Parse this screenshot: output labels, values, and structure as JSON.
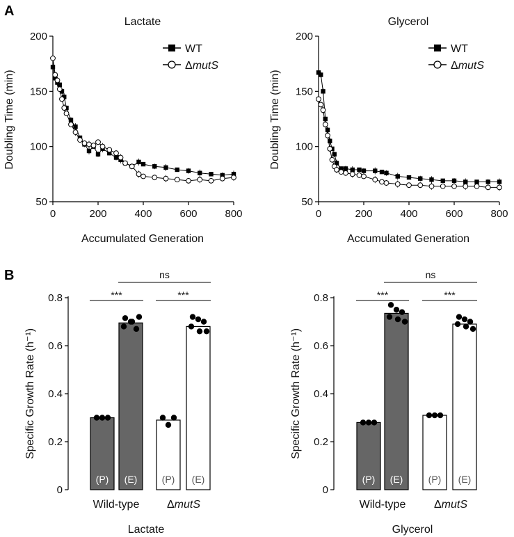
{
  "panels": {
    "A": "A",
    "B": "B"
  },
  "chart_data": [
    {
      "id": "A-lactate",
      "type": "line",
      "title": "Lactate",
      "xlabel": "Accumulated Generation",
      "ylabel": "Doubling Time (min)",
      "xlim": [
        0,
        800
      ],
      "ylim": [
        50,
        200
      ],
      "xticks": [
        0,
        200,
        400,
        600,
        800
      ],
      "yticks": [
        50,
        100,
        150,
        200
      ],
      "legend": "top-right",
      "series": [
        {
          "name": "WT",
          "marker": "filled-square",
          "x": [
            0,
            10,
            20,
            30,
            40,
            50,
            60,
            80,
            100,
            120,
            140,
            160,
            180,
            200,
            220,
            250,
            280,
            300,
            320,
            350,
            380,
            400,
            450,
            500,
            550,
            600,
            650,
            700,
            750,
            800
          ],
          "y": [
            172,
            162,
            158,
            156,
            150,
            145,
            135,
            124,
            118,
            108,
            102,
            96,
            100,
            93,
            98,
            94,
            90,
            88,
            85,
            82,
            86,
            84,
            82,
            81,
            79,
            78,
            76,
            75,
            74,
            75
          ]
        },
        {
          "name": "ΔmutS",
          "marker": "open-circle",
          "x": [
            0,
            10,
            20,
            30,
            40,
            50,
            60,
            80,
            100,
            120,
            140,
            160,
            180,
            200,
            220,
            250,
            280,
            300,
            320,
            350,
            380,
            400,
            450,
            500,
            550,
            600,
            650,
            700,
            750,
            800
          ],
          "y": [
            180,
            165,
            160,
            152,
            143,
            135,
            130,
            120,
            113,
            106,
            103,
            102,
            101,
            104,
            100,
            97,
            94,
            90,
            85,
            82,
            75,
            73,
            72,
            71,
            70,
            69,
            70,
            69,
            71,
            72
          ]
        }
      ]
    },
    {
      "id": "A-glycerol",
      "type": "line",
      "title": "Glycerol",
      "xlabel": "Accumulated Generation",
      "ylabel": "Doubling Time (min)",
      "xlim": [
        0,
        800
      ],
      "ylim": [
        50,
        200
      ],
      "xticks": [
        0,
        200,
        400,
        600,
        800
      ],
      "yticks": [
        50,
        100,
        150,
        200
      ],
      "legend": "top-right",
      "series": [
        {
          "name": "WT",
          "marker": "filled-square",
          "x": [
            0,
            10,
            20,
            30,
            40,
            50,
            60,
            70,
            80,
            100,
            120,
            150,
            180,
            200,
            250,
            280,
            300,
            350,
            400,
            450,
            500,
            550,
            600,
            650,
            700,
            750,
            800
          ],
          "y": [
            167,
            165,
            150,
            125,
            115,
            105,
            98,
            93,
            85,
            80,
            80,
            79,
            79,
            78,
            78,
            77,
            76,
            73,
            72,
            71,
            70,
            69,
            69,
            68,
            68,
            68,
            68
          ]
        },
        {
          "name": "ΔmutS",
          "marker": "open-circle",
          "x": [
            0,
            10,
            20,
            30,
            40,
            50,
            60,
            70,
            80,
            100,
            120,
            150,
            180,
            200,
            250,
            280,
            300,
            350,
            400,
            450,
            500,
            550,
            600,
            650,
            700,
            750,
            800
          ],
          "y": [
            143,
            138,
            133,
            120,
            110,
            98,
            88,
            82,
            79,
            77,
            76,
            75,
            74,
            73,
            70,
            68,
            67,
            66,
            65,
            65,
            64,
            64,
            64,
            64,
            64,
            63,
            63
          ]
        }
      ]
    },
    {
      "id": "B-lactate",
      "type": "bar",
      "xlabel": "Lactate",
      "ylabel": "Specific Growth Rate (h⁻¹)",
      "ylim": [
        0,
        0.8
      ],
      "yticks": [
        0,
        0.2,
        0.4,
        0.6,
        0.8
      ],
      "groups": [
        {
          "name": "Wild-type",
          "name_prefix": "",
          "name_italic": ""
        },
        {
          "name": "ΔmutS",
          "name_prefix": "Δ",
          "name_italic": "mutS"
        }
      ],
      "bars": [
        {
          "group": "Wild-type",
          "label": "(P)",
          "value": 0.3,
          "fill": "#666666",
          "points": [
            0.3,
            0.3,
            0.3
          ]
        },
        {
          "group": "Wild-type",
          "label": "(E)",
          "value": 0.695,
          "fill": "#666666",
          "points": [
            0.715,
            0.7,
            0.67,
            0.68,
            0.7,
            0.72
          ]
        },
        {
          "group": "ΔmutS",
          "label": "(P)",
          "value": 0.29,
          "fill": "#ffffff",
          "points": [
            0.3,
            0.27,
            0.3
          ]
        },
        {
          "group": "ΔmutS",
          "label": "(E)",
          "value": 0.68,
          "fill": "#ffffff",
          "points": [
            0.72,
            0.71,
            0.7,
            0.68,
            0.66,
            0.66
          ]
        }
      ],
      "annotations": [
        {
          "text": "***",
          "between": [
            0,
            1
          ]
        },
        {
          "text": "***",
          "between": [
            2,
            3
          ]
        },
        {
          "text": "ns",
          "between": [
            1,
            3
          ]
        }
      ]
    },
    {
      "id": "B-glycerol",
      "type": "bar",
      "xlabel": "Glycerol",
      "ylabel": "Specific Growth Rate (h⁻¹)",
      "ylim": [
        0,
        0.8
      ],
      "yticks": [
        0,
        0.2,
        0.4,
        0.6,
        0.8
      ],
      "groups": [
        {
          "name": "Wild-type",
          "name_prefix": "",
          "name_italic": ""
        },
        {
          "name": "ΔmutS",
          "name_prefix": "Δ",
          "name_italic": "mutS"
        }
      ],
      "bars": [
        {
          "group": "Wild-type",
          "label": "(P)",
          "value": 0.28,
          "fill": "#666666",
          "points": [
            0.28,
            0.28,
            0.28
          ]
        },
        {
          "group": "Wild-type",
          "label": "(E)",
          "value": 0.735,
          "fill": "#666666",
          "points": [
            0.77,
            0.75,
            0.74,
            0.72,
            0.71,
            0.7
          ]
        },
        {
          "group": "ΔmutS",
          "label": "(P)",
          "value": 0.31,
          "fill": "#ffffff",
          "points": [
            0.31,
            0.31,
            0.31
          ]
        },
        {
          "group": "ΔmutS",
          "label": "(E)",
          "value": 0.69,
          "fill": "#ffffff",
          "points": [
            0.72,
            0.71,
            0.7,
            0.69,
            0.68,
            0.67
          ]
        }
      ],
      "annotations": [
        {
          "text": "***",
          "between": [
            0,
            1
          ]
        },
        {
          "text": "***",
          "between": [
            2,
            3
          ]
        },
        {
          "text": "ns",
          "between": [
            1,
            3
          ]
        }
      ]
    }
  ]
}
